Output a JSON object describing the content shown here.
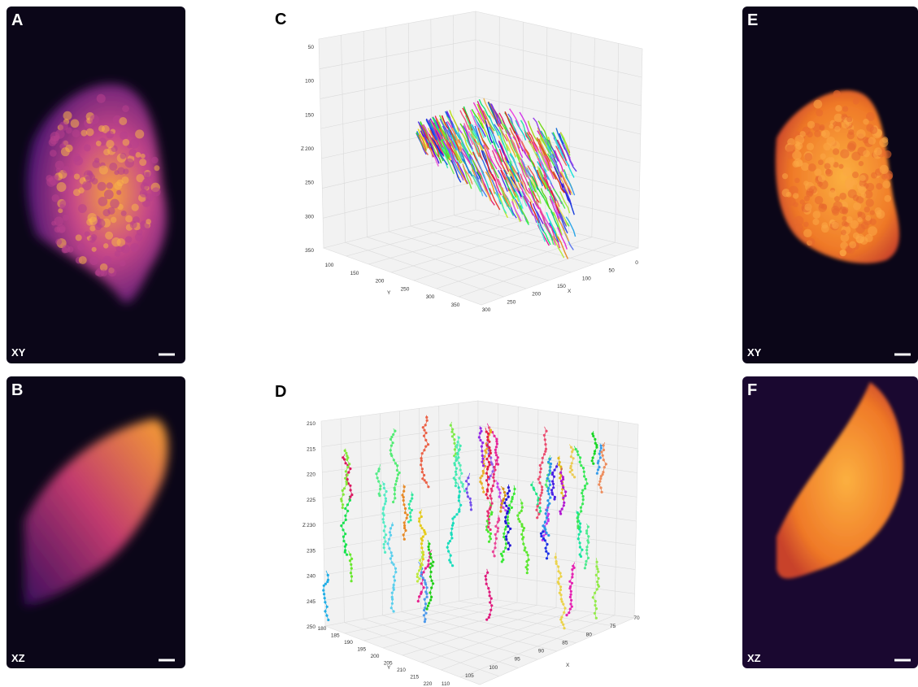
{
  "panels": [
    {
      "letter": "A",
      "view": "XY"
    },
    {
      "letter": "B",
      "view": "XZ"
    },
    {
      "letter": "C",
      "x_label": "X",
      "y_label": "Y",
      "z_label": "Z",
      "x_ticks": [
        0,
        50,
        100,
        150,
        200,
        250,
        300
      ],
      "y_ticks": [
        100,
        150,
        200,
        250,
        300,
        350
      ],
      "z_ticks": [
        50,
        100,
        150,
        200,
        250,
        300,
        350
      ]
    },
    {
      "letter": "D",
      "x_label": "X",
      "y_label": "Y",
      "z_label": "Z",
      "x_ticks": [
        70,
        75,
        80,
        85,
        90,
        95,
        100,
        105,
        110
      ],
      "y_ticks": [
        180,
        185,
        190,
        195,
        200,
        205,
        210,
        215,
        220
      ],
      "z_ticks": [
        210,
        215,
        220,
        225,
        230,
        235,
        240,
        245,
        250
      ]
    },
    {
      "letter": "E",
      "view": "XY"
    },
    {
      "letter": "F",
      "view": "XZ"
    }
  ]
}
